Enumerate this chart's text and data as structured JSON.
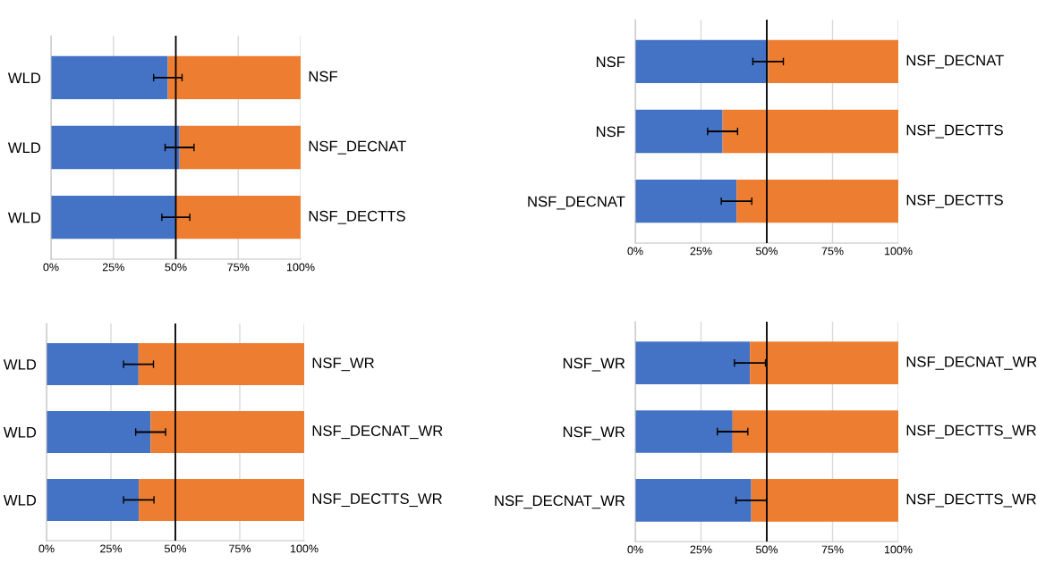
{
  "chart_data": [
    {
      "type": "bar",
      "orientation": "horizontal",
      "stacked": true,
      "categories": [
        "WLD",
        "WLD",
        "WLD"
      ],
      "series": [
        {
          "color": "#4472c4",
          "values": [
            46.8,
            51.5,
            50
          ],
          "errors": [
            5.7,
            5.8,
            5.6
          ]
        },
        {
          "color": "#ed7d31",
          "values": [
            53.2,
            48.5,
            50
          ]
        }
      ],
      "annotations": [
        "NSF",
        "NSF_DECNAT",
        "NSF_DECTTS"
      ],
      "xlim": [
        0,
        100
      ],
      "xticks": [
        {
          "value": 0,
          "label": "0%"
        },
        {
          "value": 25,
          "label": "25%"
        },
        {
          "value": 50,
          "label": "50%"
        },
        {
          "value": 75,
          "label": "75%"
        },
        {
          "value": 100,
          "label": "100%"
        }
      ],
      "ref_lines": [
        {
          "axis": "x",
          "value": 50,
          "color": "#000000"
        }
      ],
      "grid": "x"
    },
    {
      "type": "bar",
      "orientation": "horizontal",
      "stacked": true,
      "categories": [
        "NSF",
        "NSF",
        "NSF_DECNAT"
      ],
      "series": [
        {
          "color": "#4472c4",
          "values": [
            50.5,
            33.2,
            38.5
          ],
          "errors": [
            5.8,
            5.7,
            5.8
          ]
        },
        {
          "color": "#ed7d31",
          "values": [
            49.5,
            66.8,
            61.5
          ]
        }
      ],
      "annotations": [
        "NSF_DECNAT",
        "NSF_DECTTS",
        "NSF_DECTTS"
      ],
      "xlim": [
        0,
        100
      ],
      "xticks": [
        {
          "value": 0,
          "label": "0%"
        },
        {
          "value": 25,
          "label": "25%"
        },
        {
          "value": 50,
          "label": "50%"
        },
        {
          "value": 75,
          "label": "75%"
        },
        {
          "value": 100,
          "label": "100%"
        }
      ],
      "ref_lines": [
        {
          "axis": "x",
          "value": 50,
          "color": "#000000"
        }
      ],
      "grid": "x"
    },
    {
      "type": "bar",
      "orientation": "horizontal",
      "stacked": true,
      "categories": [
        "WLD",
        "WLD",
        "WLD"
      ],
      "series": [
        {
          "color": "#4472c4",
          "values": [
            35.7,
            40.4,
            35.8
          ],
          "errors": [
            5.8,
            5.8,
            5.9
          ]
        },
        {
          "color": "#ed7d31",
          "values": [
            64.3,
            59.6,
            64.2
          ]
        }
      ],
      "annotations": [
        "NSF_WR",
        "NSF_DECNAT_WR",
        "NSF_DECTTS_WR"
      ],
      "xlim": [
        0,
        100
      ],
      "xticks": [
        {
          "value": 0,
          "label": "0%"
        },
        {
          "value": 25,
          "label": "25%"
        },
        {
          "value": 50,
          "label": "50%"
        },
        {
          "value": 75,
          "label": "75%"
        },
        {
          "value": 100,
          "label": "100%"
        }
      ],
      "ref_lines": [
        {
          "axis": "x",
          "value": 50,
          "color": "#000000"
        }
      ],
      "grid": "x"
    },
    {
      "type": "bar",
      "orientation": "horizontal",
      "stacked": true,
      "categories": [
        "NSF_WR",
        "NSF_WR",
        "NSF_DECNAT_WR"
      ],
      "series": [
        {
          "color": "#4472c4",
          "values": [
            43.6,
            37,
            44.1
          ],
          "errors": [
            5.9,
            5.8,
            5.8
          ]
        },
        {
          "color": "#ed7d31",
          "values": [
            56.4,
            63,
            55.9
          ]
        }
      ],
      "annotations": [
        "NSF_DECNAT_WR",
        "NSF_DECTTS_WR",
        "NSF_DECTTS_WR"
      ],
      "xlim": [
        0,
        100
      ],
      "xticks": [
        {
          "value": 0,
          "label": "0%"
        },
        {
          "value": 25,
          "label": "25%"
        },
        {
          "value": 50,
          "label": "50%"
        },
        {
          "value": 75,
          "label": "75%"
        },
        {
          "value": 100,
          "label": "100%"
        }
      ],
      "ref_lines": [
        {
          "axis": "x",
          "value": 50,
          "color": "#000000"
        }
      ],
      "grid": "x"
    }
  ]
}
